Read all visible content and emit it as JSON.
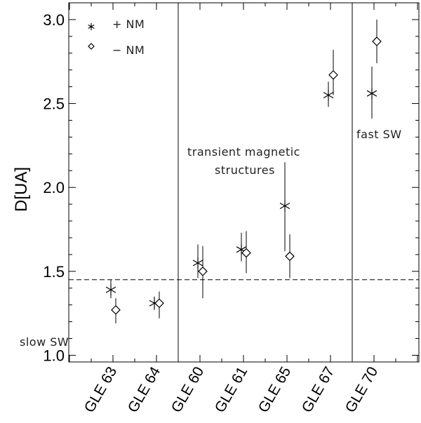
{
  "chart_data": {
    "type": "scatter",
    "categories": [
      "GLE 63",
      "GLE 64",
      "GLE 60",
      "GLE 61",
      "GLE 65",
      "GLE 67",
      "GLE 70"
    ],
    "ylabel": "D[UA]",
    "ylim": [
      0.96,
      3.1
    ],
    "y_ticks": [
      "1.0",
      "1.5",
      "2.0",
      "2.5",
      "3.0"
    ],
    "reference_line": 1.45,
    "region_separators_after_category_index": [
      1,
      5
    ],
    "series": [
      {
        "name": "+ NM",
        "marker": "asterisk",
        "values": [
          1.39,
          1.31,
          1.55,
          1.63,
          1.89,
          2.55,
          2.56
        ],
        "err_low": [
          1.34,
          1.27,
          1.46,
          1.56,
          1.62,
          2.48,
          2.41
        ],
        "err_high": [
          1.45,
          1.35,
          1.66,
          1.73,
          2.15,
          2.63,
          2.72
        ]
      },
      {
        "name": "− NM",
        "marker": "diamond",
        "values": [
          1.27,
          1.31,
          1.5,
          1.61,
          1.59,
          2.67,
          2.87
        ],
        "err_low": [
          1.19,
          1.22,
          1.34,
          1.49,
          1.46,
          2.55,
          2.74
        ],
        "err_high": [
          1.34,
          1.38,
          1.65,
          1.74,
          1.72,
          2.82,
          3.0
        ]
      }
    ],
    "legend": {
      "plus_label": "+ NM",
      "minus_label": "− NM"
    },
    "annotations": {
      "slow": "slow  SW",
      "transient_line1": "transient magnetic",
      "transient_line2": "structures",
      "fast": "fast  SW"
    }
  }
}
